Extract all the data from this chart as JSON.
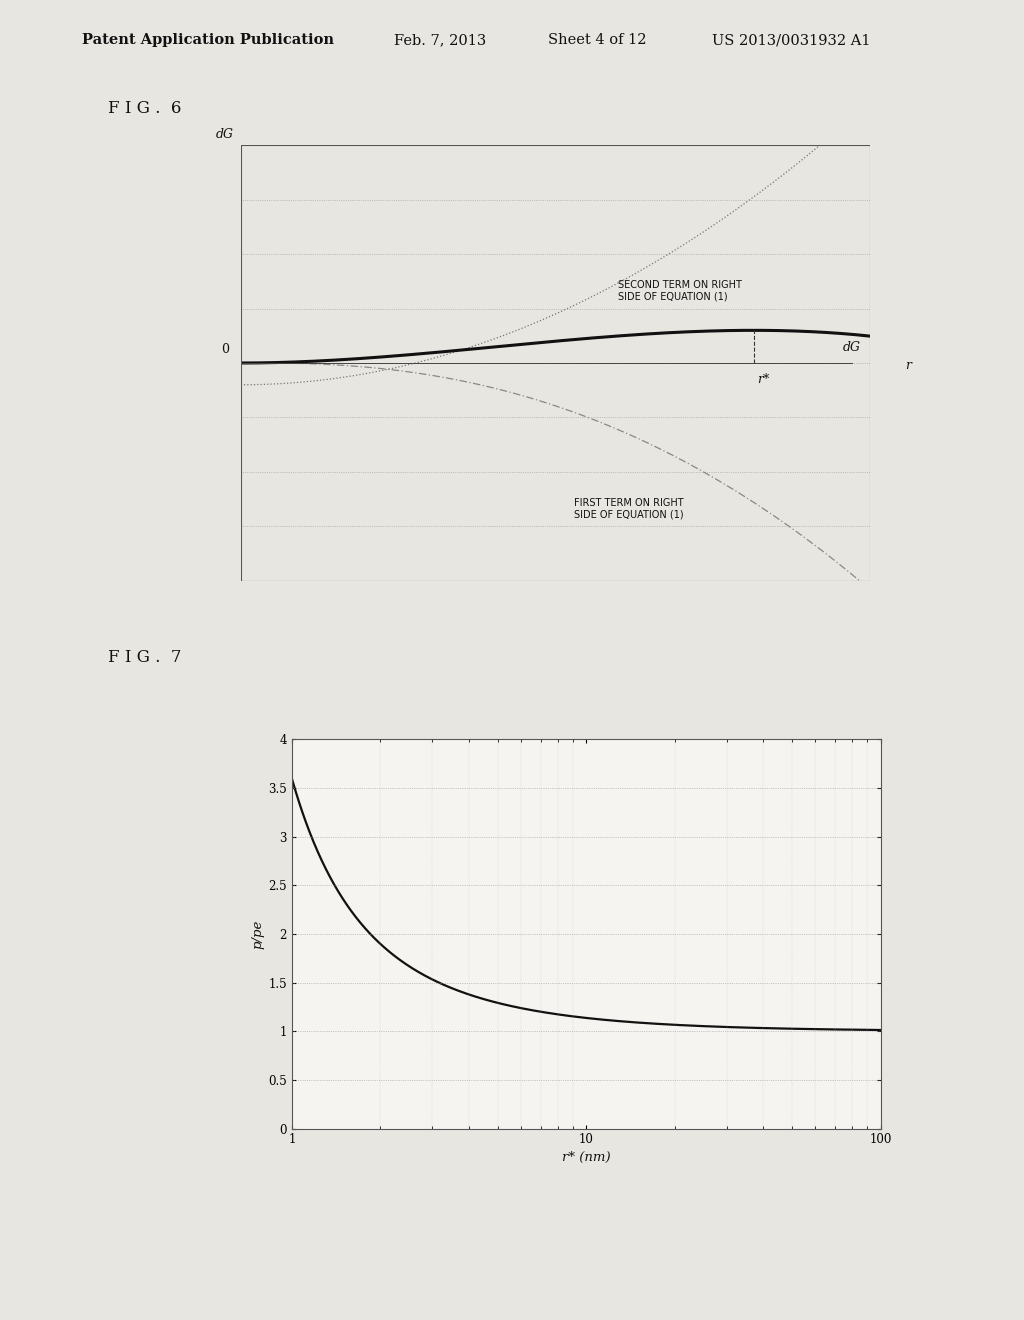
{
  "page_bg": "#e8e6e1",
  "plot_bg": "#f5f4f0",
  "header_text": "Patent Application Publication",
  "header_date": "Feb. 7, 2013",
  "header_sheet": "Sheet 4 of 12",
  "header_patent": "US 2013/0031932 A1",
  "fig6_label": "F I G .  6",
  "fig7_label": "F I G .  7",
  "fig6": {
    "bg": "#f5f4f0",
    "grid_color": "#999999",
    "ylabel": "dG",
    "xlabel": "r",
    "zero_label": "0",
    "rstar_label": "r*",
    "dG_curve_label": "dG",
    "second_term_label": "SECOND TERM ON RIGHT\nSIDE OF EQUATION (1)",
    "first_term_label": "FIRST TERM ON RIGHT\nSIDE OF EQUATION (1)",
    "ylim": [
      -5,
      5
    ],
    "xlim": [
      0,
      10
    ],
    "n_hgrid": 9
  },
  "fig7": {
    "bg": "#f5f4f0",
    "grid_color": "#999999",
    "ylabel": "p/pe",
    "xlabel": "r* (nm)",
    "ylim": [
      0,
      4
    ],
    "xlim": [
      1,
      100
    ],
    "yticks": [
      0,
      0.5,
      1.0,
      1.5,
      2.0,
      2.5,
      3.0,
      3.5,
      4.0
    ],
    "ytick_labels": [
      "0",
      "0.5",
      "1",
      "1.5",
      "2",
      "2.5",
      "3",
      "3.5",
      "4"
    ],
    "xticks": [
      1,
      10,
      100
    ],
    "xtick_labels": [
      "1",
      "10",
      "100"
    ],
    "kelvin_A": 1.28
  }
}
